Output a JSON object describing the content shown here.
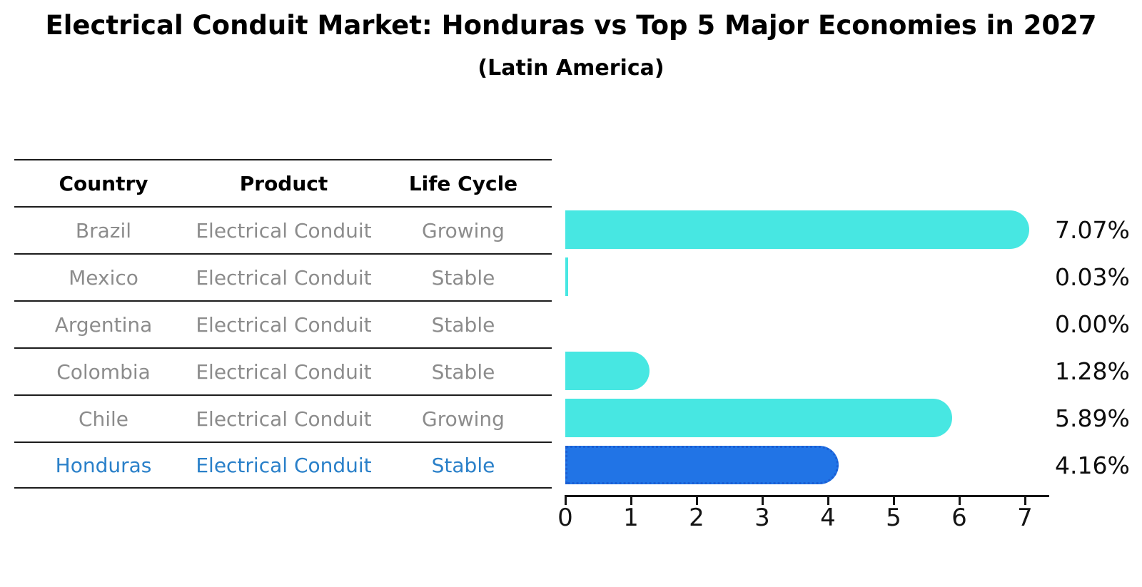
{
  "title": "Electrical Conduit Market: Honduras vs Top 5 Major Economies in 2027",
  "subtitle": "(Latin America)",
  "table": {
    "headers": [
      "Country",
      "Product",
      "Life Cycle"
    ],
    "rows": [
      {
        "country": "Brazil",
        "product": "Electrical Conduit",
        "life_cycle": "Growing",
        "highlight": false
      },
      {
        "country": "Mexico",
        "product": "Electrical Conduit",
        "life_cycle": "Stable",
        "highlight": false
      },
      {
        "country": "Argentina",
        "product": "Electrical Conduit",
        "life_cycle": "Stable",
        "highlight": false
      },
      {
        "country": "Colombia",
        "product": "Electrical Conduit",
        "life_cycle": "Stable",
        "highlight": false
      },
      {
        "country": "Chile",
        "product": "Electrical Conduit",
        "life_cycle": "Growing",
        "highlight": false
      },
      {
        "country": "Honduras",
        "product": "Electrical Conduit",
        "life_cycle": "Stable",
        "highlight": true
      }
    ]
  },
  "chart_data": {
    "type": "bar",
    "orientation": "horizontal",
    "title": "Electrical Conduit Market: Honduras vs Top 5 Major Economies in 2027",
    "subtitle": "(Latin America)",
    "categories": [
      "Brazil",
      "Mexico",
      "Argentina",
      "Colombia",
      "Chile",
      "Honduras"
    ],
    "values": [
      7.07,
      0.03,
      0.0,
      1.28,
      5.89,
      4.16
    ],
    "value_labels": [
      "7.07%",
      "0.03%",
      "0.00%",
      "1.28%",
      "5.89%",
      "4.16%"
    ],
    "x_ticks": [
      0,
      1,
      2,
      3,
      4,
      5,
      6,
      7
    ],
    "xlim": [
      0,
      7.37
    ],
    "grid": false,
    "legend": false,
    "highlight_category": "Honduras",
    "highlight_index": 5,
    "bar_color": "#47e7e2",
    "highlight_color": "#2174e6",
    "highlight_border_color": "#1a5ed4"
  },
  "colors": {
    "title_text": "#000000",
    "table_header_text": "#000000",
    "table_cell_text": "#8c8c8c",
    "highlight_row_text": "#2a80c9",
    "axis": "#141414",
    "value_label_text": "#0d0d0d"
  }
}
